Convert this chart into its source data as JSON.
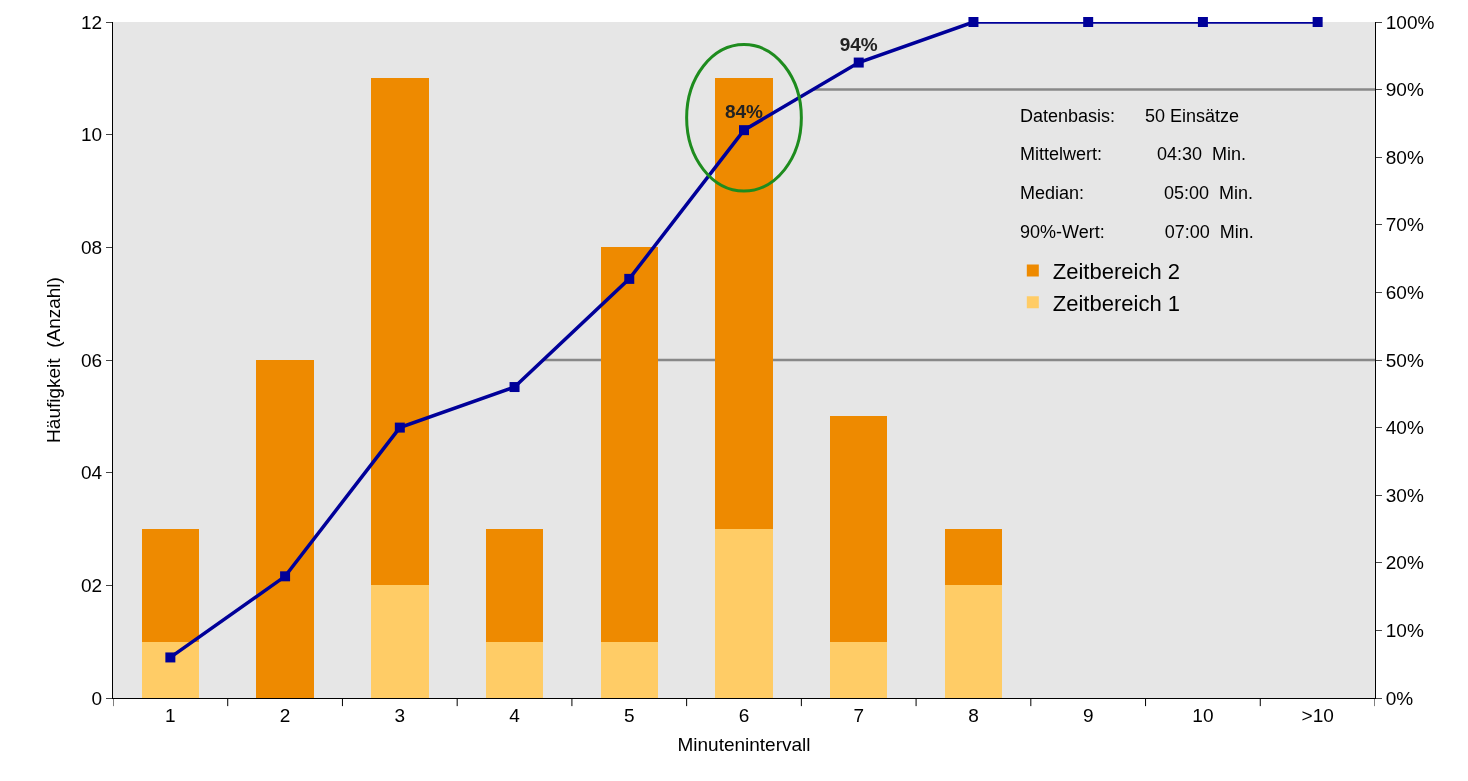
{
  "chart_data": {
    "type": "bar",
    "stacked": true,
    "xlabel": "Minutenintervall",
    "ylabel": "Häufigkeit  (Anzahl)",
    "categories": [
      "1",
      "2",
      "3",
      "4",
      "5",
      "6",
      "7",
      "8",
      "9",
      "10",
      ">10"
    ],
    "series": [
      {
        "name": "Zeitbereich 1",
        "color": "#ffcc66",
        "values": [
          1,
          0,
          2,
          1,
          1,
          3,
          1,
          2,
          0,
          0,
          0
        ]
      },
      {
        "name": "Zeitbereich 2",
        "color": "#ee8a00",
        "values": [
          2,
          6,
          9,
          2,
          7,
          8,
          4,
          1,
          0,
          0,
          0
        ]
      },
      {
        "type": "line",
        "axis": "y2",
        "color": "#000099",
        "marker": "square",
        "values": [
          6,
          18,
          40,
          46,
          62,
          84,
          94,
          100,
          100,
          100,
          100
        ],
        "value_labels": [
          null,
          null,
          null,
          null,
          null,
          "84%",
          "94%",
          null,
          null,
          null,
          null
        ]
      }
    ],
    "ylim": [
      0,
      12
    ],
    "yticks": [
      0,
      {
        "value": 2,
        "label": "02"
      },
      {
        "value": 4,
        "label": "04"
      },
      {
        "value": 6,
        "label": "06"
      },
      {
        "value": 8,
        "label": "08"
      },
      10,
      12
    ],
    "y2lim": [
      0,
      100
    ],
    "y2ticks": [
      {
        "value": 0,
        "label": "0%"
      },
      {
        "value": 10,
        "label": "10%"
      },
      {
        "value": 20,
        "label": "20%"
      },
      {
        "value": 30,
        "label": "30%"
      },
      {
        "value": 40,
        "label": "40%"
      },
      {
        "value": 50,
        "label": "50%"
      },
      {
        "value": 60,
        "label": "60%"
      },
      {
        "value": 70,
        "label": "70%"
      },
      {
        "value": 80,
        "label": "80%"
      },
      {
        "value": 90,
        "label": "90%"
      },
      {
        "value": 100,
        "label": "100%"
      }
    ],
    "ref_lines": [
      {
        "axis": "y2",
        "value": 50,
        "color": "#888888"
      },
      {
        "axis": "y2",
        "value": 90,
        "color": "#888888"
      }
    ],
    "annotations": [
      "Datenbasis:      50 Einsätze",
      "Mittelwert:           04:30  Min.",
      "Median:                05:00  Min.",
      "90%-Wert:            07:00  Min."
    ],
    "legend": "top right",
    "grid": false
  }
}
